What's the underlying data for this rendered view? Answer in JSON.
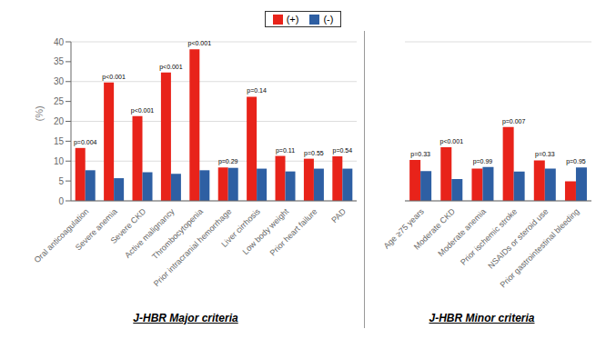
{
  "chart_data": [
    {
      "type": "bar",
      "xlabel": "J-HBR Major criteria",
      "ylabel": "(%)",
      "categories": [
        "Oral anticoagulation",
        "Severe anemia",
        "Severe CKD",
        "Active malignancy",
        "Thrombocytopenia",
        "Prior intracranial hemorrhage",
        "Liver cirrhosis",
        "Low body weight",
        "Prior heart failure",
        "PAD"
      ],
      "series": [
        {
          "name": "(+)",
          "color": "#e8231a",
          "values": [
            13.3,
            29.8,
            21.3,
            32.3,
            38.1,
            8.4,
            26.2,
            11.3,
            10.6,
            11.2
          ]
        },
        {
          "name": "(-)",
          "color": "#2e5fa3",
          "values": [
            7.7,
            5.7,
            7.2,
            6.8,
            7.7,
            8.3,
            8.1,
            7.4,
            8.1,
            8.1
          ]
        }
      ],
      "annotations": [
        "p=0.004",
        "p<0.001",
        "p<0.001",
        "p<0.001",
        "p<0.001",
        "p=0.29",
        "p=0.14",
        "p=0.11",
        "p=0.55",
        "p=0.54"
      ],
      "ylim": [
        0,
        40
      ],
      "yticks": [
        0,
        5,
        10,
        15,
        20,
        25,
        30,
        35,
        40
      ],
      "grid": true,
      "legend": "top"
    },
    {
      "type": "bar",
      "xlabel": "J-HBR Minor criteria",
      "categories": [
        "Age ≥75 years",
        "Moderate CKD",
        "Moderate anemia",
        "Prior ischemic stroke",
        "NSAIDs or steroid use",
        "Prior gastrointestinal bleeding"
      ],
      "series": [
        {
          "name": "(+)",
          "color": "#e8231a",
          "values": [
            10.3,
            13.5,
            8.1,
            18.6,
            10.2,
            4.9
          ]
        },
        {
          "name": "(-)",
          "color": "#2e5fa3",
          "values": [
            7.5,
            5.5,
            8.5,
            7.4,
            8.1,
            8.4
          ]
        }
      ],
      "annotations": [
        "p=0.33",
        "p<0.001",
        "p=0.99",
        "p=0.007",
        "p=0.33",
        "p=0.95"
      ],
      "ylim": [
        0,
        40
      ],
      "yticks": [
        0,
        5,
        10,
        15,
        20,
        25,
        30,
        35,
        40
      ],
      "grid": true,
      "tick_labels": "x"
    }
  ]
}
